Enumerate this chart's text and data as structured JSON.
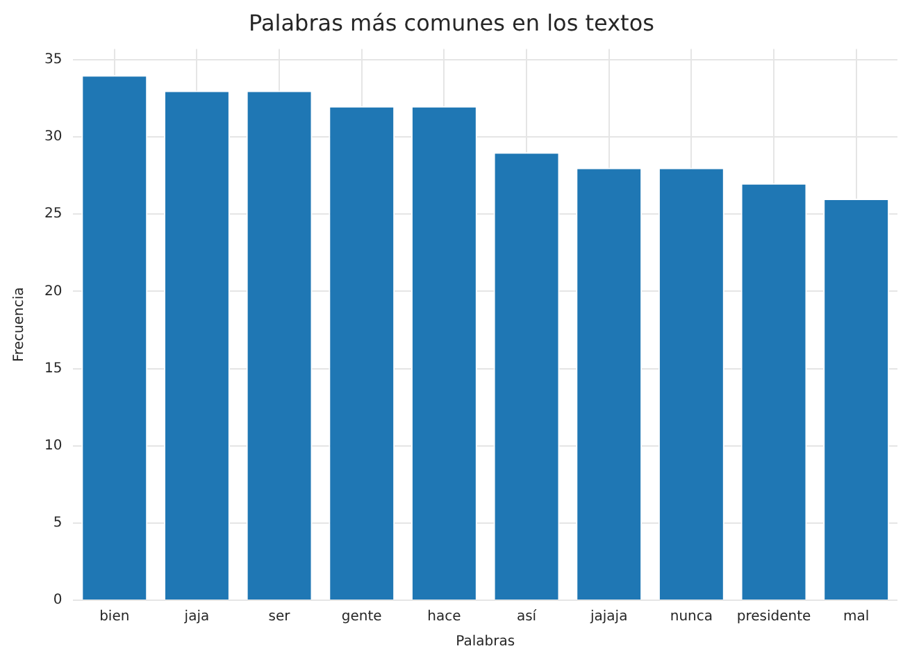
{
  "chart_data": {
    "type": "bar",
    "title": "Palabras más comunes en los textos",
    "xlabel": "Palabras",
    "ylabel": "Frecuencia",
    "categories": [
      "bien",
      "jaja",
      "ser",
      "gente",
      "hace",
      "así",
      "jajaja",
      "nunca",
      "presidente",
      "mal"
    ],
    "values": [
      34,
      33,
      33,
      32,
      32,
      29,
      28,
      28,
      27,
      26
    ],
    "color": "#1f77b4",
    "ylim": [
      0,
      35.7
    ],
    "yticks": [
      0,
      5,
      10,
      15,
      20,
      25,
      30,
      35
    ],
    "grid": true
  }
}
